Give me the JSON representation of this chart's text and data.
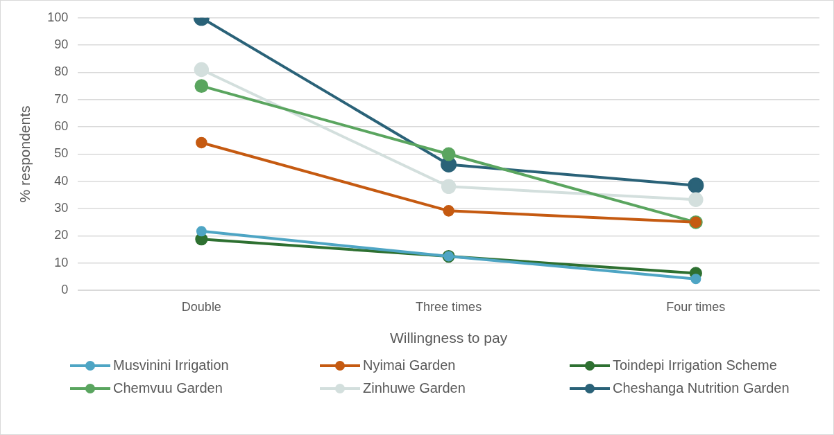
{
  "chart_data": {
    "type": "line",
    "xlabel": "Willingness to pay",
    "ylabel": "% respondents",
    "categories": [
      "Double",
      "Three times",
      "Four times"
    ],
    "series": [
      {
        "name": "Musvinini Irrigation",
        "color": "#4ea5c4",
        "values": [
          21.7,
          12.5,
          4.2
        ]
      },
      {
        "name": "Nyimai Garden",
        "color": "#c55a11",
        "values": [
          54.2,
          29.2,
          25
        ]
      },
      {
        "name": "Toindepi Irrigation Scheme",
        "color": "#2e7031",
        "values": [
          18.8,
          12.5,
          6.3
        ]
      },
      {
        "name": "Chemvuu Garden",
        "color": "#5aa55f",
        "values": [
          75,
          50,
          25
        ]
      },
      {
        "name": "Zinhuwe Garden",
        "color": "#d3dfdd",
        "values": [
          81,
          38.1,
          33.3
        ]
      },
      {
        "name": "Cheshanga Nutrition Garden",
        "color": "#2a6278",
        "values": [
          100,
          46.2,
          38.5
        ]
      }
    ],
    "ylim": [
      0,
      100
    ],
    "yticks": [
      0,
      10,
      20,
      30,
      40,
      50,
      60,
      70,
      80,
      90,
      100
    ],
    "grid": "y",
    "legend": "bottom",
    "marker": "circle",
    "line_style": "solid"
  }
}
